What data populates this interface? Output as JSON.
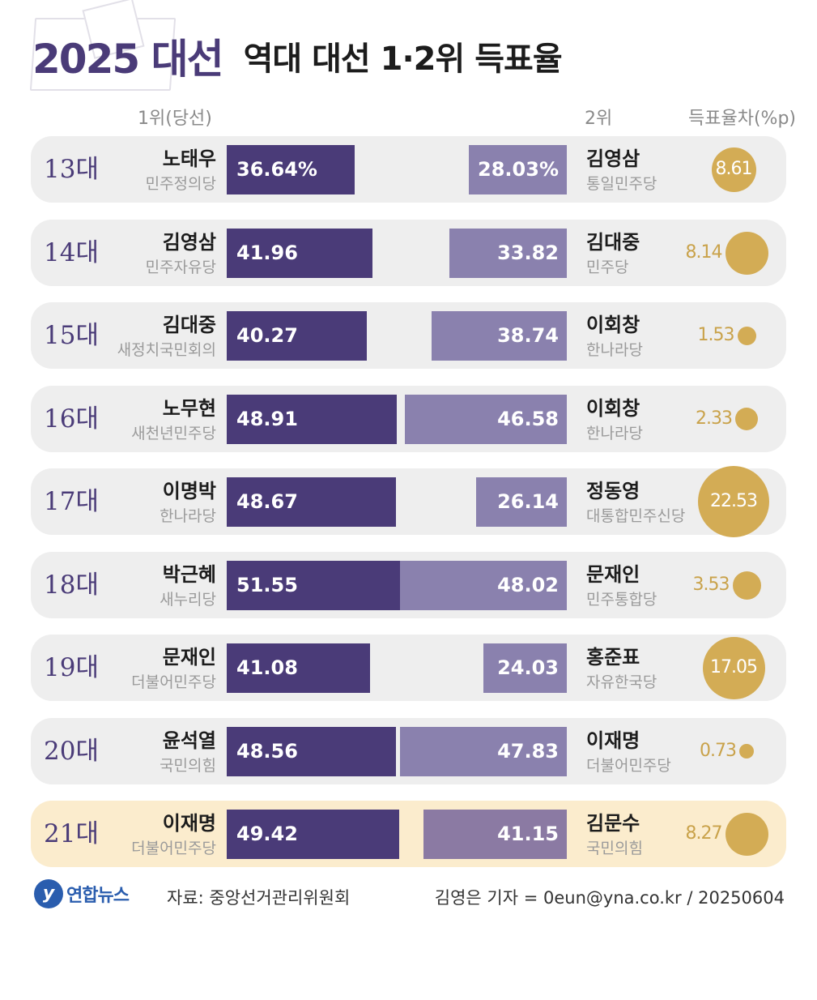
{
  "title": {
    "main": "2025 대선",
    "sub": "역대 대선 1·2위 득표율"
  },
  "headers": {
    "winner": "1위(당선)",
    "runner_up": "2위",
    "diff": "득표율차(%p)"
  },
  "chart_data": {
    "type": "bar",
    "rows": [
      {
        "era": "13대",
        "winner": "노태우",
        "winner_party": "민주정의당",
        "winner_value": 36.64,
        "winner_label": "36.64%",
        "runner": "김영삼",
        "runner_party": "통일민주당",
        "runner_value": 28.03,
        "runner_label": "28.03%",
        "diff": 8.61,
        "diff_label": "8.61",
        "highlight": false
      },
      {
        "era": "14대",
        "winner": "김영삼",
        "winner_party": "민주자유당",
        "winner_value": 41.96,
        "winner_label": "41.96",
        "runner": "김대중",
        "runner_party": "민주당",
        "runner_value": 33.82,
        "runner_label": "33.82",
        "diff": 8.14,
        "diff_label": "8.14",
        "highlight": false
      },
      {
        "era": "15대",
        "winner": "김대중",
        "winner_party": "새정치국민회의",
        "winner_value": 40.27,
        "winner_label": "40.27",
        "runner": "이회창",
        "runner_party": "한나라당",
        "runner_value": 38.74,
        "runner_label": "38.74",
        "diff": 1.53,
        "diff_label": "1.53",
        "highlight": false
      },
      {
        "era": "16대",
        "winner": "노무현",
        "winner_party": "새천년민주당",
        "winner_value": 48.91,
        "winner_label": "48.91",
        "runner": "이회창",
        "runner_party": "한나라당",
        "runner_value": 46.58,
        "runner_label": "46.58",
        "diff": 2.33,
        "diff_label": "2.33",
        "highlight": false
      },
      {
        "era": "17대",
        "winner": "이명박",
        "winner_party": "한나라당",
        "winner_value": 48.67,
        "winner_label": "48.67",
        "runner": "정동영",
        "runner_party": "대통합민주신당",
        "runner_value": 26.14,
        "runner_label": "26.14",
        "diff": 22.53,
        "diff_label": "22.53",
        "highlight": false
      },
      {
        "era": "18대",
        "winner": "박근혜",
        "winner_party": "새누리당",
        "winner_value": 51.55,
        "winner_label": "51.55",
        "runner": "문재인",
        "runner_party": "민주통합당",
        "runner_value": 48.02,
        "runner_label": "48.02",
        "diff": 3.53,
        "diff_label": "3.53",
        "highlight": false
      },
      {
        "era": "19대",
        "winner": "문재인",
        "winner_party": "더불어민주당",
        "winner_value": 41.08,
        "winner_label": "41.08",
        "runner": "홍준표",
        "runner_party": "자유한국당",
        "runner_value": 24.03,
        "runner_label": "24.03",
        "diff": 17.05,
        "diff_label": "17.05",
        "highlight": false
      },
      {
        "era": "20대",
        "winner": "윤석열",
        "winner_party": "국민의힘",
        "winner_value": 48.56,
        "winner_label": "48.56",
        "runner": "이재명",
        "runner_party": "더불어민주당",
        "runner_value": 47.83,
        "runner_label": "47.83",
        "diff": 0.73,
        "diff_label": "0.73",
        "highlight": false
      },
      {
        "era": "21대",
        "winner": "이재명",
        "winner_party": "더불어민주당",
        "winner_value": 49.42,
        "winner_label": "49.42",
        "runner": "김문수",
        "runner_party": "국민의힘",
        "runner_value": 41.15,
        "runner_label": "41.15",
        "diff": 8.27,
        "diff_label": "8.27",
        "highlight": true
      }
    ]
  },
  "footer": {
    "logo_text": "연합뉴스",
    "logo_mark": "y",
    "source": "자료: 중앙선거관리위원회",
    "credit": "김영은 기자 = 0eun@yna.co.kr / 20250604"
  },
  "colors": {
    "winner_bar": "#4a3b78",
    "runner_bar": "#8a81ae",
    "diff_circle": "#d3ac55",
    "highlight_row": "#fbeccd"
  }
}
